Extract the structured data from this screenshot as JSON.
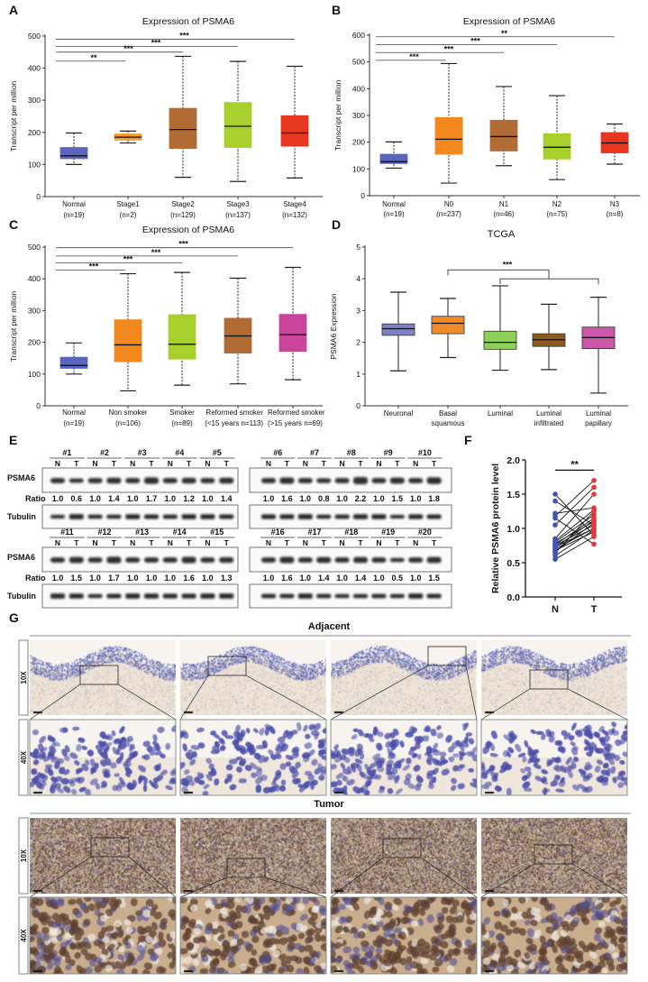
{
  "panel_labels": {
    "A": "A",
    "B": "B",
    "C": "C",
    "D": "D",
    "E": "E",
    "F": "F",
    "G": "G"
  },
  "chart_data": [
    {
      "id": "A",
      "type": "box",
      "title": "Expression of PSMA6",
      "ylabel": "Transcript per million",
      "ylim": [
        0,
        500
      ],
      "yticks": [
        0,
        100,
        200,
        300,
        400,
        500
      ],
      "whisker_style": "dashed",
      "categories": [
        "Normal",
        "Stage1",
        "Stage2",
        "Stage3",
        "Stage4"
      ],
      "sublabels": [
        "(n=19)",
        "(n=2)",
        "(n=129)",
        "(n=137)",
        "(n=132)"
      ],
      "colors": [
        "#5866be",
        "#f39a2b",
        "#b06c34",
        "#a8d02c",
        "#e8361f"
      ],
      "boxes": [
        {
          "min": 100,
          "q1": 118,
          "median": 127,
          "q3": 153,
          "max": 198
        },
        {
          "min": 167,
          "q1": 176,
          "median": 185,
          "q3": 195,
          "max": 204
        },
        {
          "min": 60,
          "q1": 150,
          "median": 209,
          "q3": 275,
          "max": 437
        },
        {
          "min": 47,
          "q1": 153,
          "median": 219,
          "q3": 293,
          "max": 421
        },
        {
          "min": 58,
          "q1": 157,
          "median": 198,
          "q3": 252,
          "max": 406
        }
      ],
      "significance": [
        {
          "from": 0,
          "to": 1,
          "y": 422,
          "label": "**"
        },
        {
          "from": 0,
          "to": 2,
          "y": 450,
          "label": "***"
        },
        {
          "from": 0,
          "to": 3,
          "y": 468,
          "label": "***"
        },
        {
          "from": 0,
          "to": 4,
          "y": 490,
          "label": "***"
        }
      ]
    },
    {
      "id": "B",
      "type": "box",
      "title": "Expression of PSMA6",
      "ylabel": "Transcript per million",
      "ylim": [
        0,
        600
      ],
      "yticks": [
        0,
        100,
        200,
        300,
        400,
        500,
        600
      ],
      "whisker_style": "dashed",
      "categories": [
        "Normal",
        "N0",
        "N1",
        "N2",
        "N3"
      ],
      "sublabels": [
        "(n=19)",
        "(n=237)",
        "(n=46)",
        "(n=75)",
        "(n=8)"
      ],
      "colors": [
        "#5866be",
        "#f3881f",
        "#b06c34",
        "#a8d02c",
        "#e8361f"
      ],
      "boxes": [
        {
          "min": 103,
          "q1": 120,
          "median": 127,
          "q3": 155,
          "max": 201
        },
        {
          "min": 47,
          "q1": 155,
          "median": 211,
          "q3": 292,
          "max": 494
        },
        {
          "min": 112,
          "q1": 167,
          "median": 221,
          "q3": 282,
          "max": 408
        },
        {
          "min": 60,
          "q1": 137,
          "median": 181,
          "q3": 232,
          "max": 374
        },
        {
          "min": 118,
          "q1": 160,
          "median": 197,
          "q3": 236,
          "max": 268
        }
      ],
      "significance": [
        {
          "from": 0,
          "to": 1,
          "y": 506,
          "label": "***"
        },
        {
          "from": 0,
          "to": 2,
          "y": 535,
          "label": "***"
        },
        {
          "from": 0,
          "to": 3,
          "y": 565,
          "label": "***"
        },
        {
          "from": 0,
          "to": 4,
          "y": 594,
          "label": "**"
        }
      ]
    },
    {
      "id": "C",
      "type": "box",
      "title": "Expression of PSMA6",
      "ylabel": "Transcript per million",
      "ylim": [
        0,
        500
      ],
      "yticks": [
        0,
        100,
        200,
        300,
        400,
        500
      ],
      "whisker_style": "dashed",
      "categories": [
        "Normal",
        "Non smoker",
        "Smoker",
        "Reformed smoker",
        "Reformed smoker"
      ],
      "sublabels": [
        "(n=19)",
        "(n=106)",
        "(n=89)",
        "(<15 years n=113)",
        "(>15 years n=69)"
      ],
      "colors": [
        "#5866be",
        "#f3881f",
        "#a8d02c",
        "#b06c34",
        "#c8459b"
      ],
      "boxes": [
        {
          "min": 100,
          "q1": 118,
          "median": 127,
          "q3": 153,
          "max": 198
        },
        {
          "min": 47,
          "q1": 139,
          "median": 192,
          "q3": 271,
          "max": 416
        },
        {
          "min": 65,
          "q1": 147,
          "median": 194,
          "q3": 287,
          "max": 420
        },
        {
          "min": 69,
          "q1": 166,
          "median": 220,
          "q3": 276,
          "max": 402
        },
        {
          "min": 82,
          "q1": 171,
          "median": 224,
          "q3": 288,
          "max": 436
        }
      ],
      "significance": [
        {
          "from": 0,
          "to": 1,
          "y": 428,
          "label": "***"
        },
        {
          "from": 0,
          "to": 2,
          "y": 450,
          "label": "***"
        },
        {
          "from": 0,
          "to": 3,
          "y": 472,
          "label": "***"
        },
        {
          "from": 0,
          "to": 4,
          "y": 498,
          "label": "***"
        }
      ]
    },
    {
      "id": "D",
      "type": "box",
      "title": "TCGA",
      "ylabel": "PSMA6 Expression",
      "ylim": [
        0,
        5
      ],
      "yticks": [
        0,
        1,
        2,
        3,
        4,
        5
      ],
      "whisker_style": "solid",
      "categories": [
        "Neuronal",
        "Basal",
        "Luminal",
        "Luminal",
        "Luminal"
      ],
      "sublabels": [
        "",
        "squamous",
        "",
        "infiltrated",
        "papillary"
      ],
      "colors": [
        "#7d82c6",
        "#f38a2a",
        "#8fd05b",
        "#8b5b1f",
        "#cc56a9"
      ],
      "boxes": [
        {
          "min": 1.1,
          "q1": 2.22,
          "median": 2.43,
          "q3": 2.58,
          "max": 3.58
        },
        {
          "min": 1.52,
          "q1": 2.27,
          "median": 2.6,
          "q3": 2.82,
          "max": 3.38
        },
        {
          "min": 1.12,
          "q1": 1.78,
          "median": 2.0,
          "q3": 2.35,
          "max": 3.78
        },
        {
          "min": 1.14,
          "q1": 1.87,
          "median": 2.08,
          "q3": 2.27,
          "max": 3.2
        },
        {
          "min": 0.4,
          "q1": 1.8,
          "median": 2.15,
          "q3": 2.48,
          "max": 3.42
        }
      ],
      "bracket": {
        "left": 1,
        "right_from": 2,
        "right_to": 4,
        "y_top": 4.28,
        "y_low": 4.0,
        "label": "***"
      }
    },
    {
      "id": "F",
      "type": "paired_scatter",
      "ylabel": "Relative PSMA6 protein level",
      "ylim": [
        0,
        2.0
      ],
      "yticks": [
        "0.0",
        "0.5",
        "1.0",
        "1.5",
        "2.0"
      ],
      "categories": [
        "N",
        "T"
      ],
      "colors": [
        "#3f54b3",
        "#e5373c"
      ],
      "N": [
        1.5,
        1.4,
        1.22,
        1.18,
        1.15,
        1.05,
        0.85,
        0.82,
        0.8,
        0.78,
        0.76,
        0.75,
        0.73,
        0.72,
        0.7,
        0.68,
        0.66,
        0.64,
        0.6,
        0.55
      ],
      "T": [
        0.9,
        1.05,
        1.3,
        1.7,
        0.77,
        1.6,
        1.5,
        1.27,
        1.2,
        1.1,
        1.15,
        1.05,
        1.0,
        1.12,
        1.0,
        0.95,
        1.08,
        1.25,
        0.98,
        0.88
      ],
      "significance": {
        "label": "**",
        "y": 1.85
      }
    }
  ],
  "western_blot": {
    "row_labels": {
      "target": "PSMA6",
      "ratio": "Ratio",
      "control": "Tubulin"
    },
    "lane_labels": [
      "N",
      "T"
    ],
    "blocks": [
      {
        "samples": [
          "#1",
          "#2",
          "#3",
          "#4",
          "#5"
        ],
        "ratios": [
          "1.0",
          "0.6",
          "1.0",
          "1.4",
          "1.0",
          "1.7",
          "1.0",
          "1.2",
          "1.0",
          "1.4"
        ]
      },
      {
        "samples": [
          "#6",
          "#7",
          "#8",
          "#9",
          "#10"
        ],
        "ratios": [
          "1.0",
          "1.6",
          "1.0",
          "0.8",
          "1.0",
          "2.2",
          "1.0",
          "1.5",
          "1.0",
          "1.8"
        ]
      },
      {
        "samples": [
          "#11",
          "#12",
          "#13",
          "#14",
          "#15"
        ],
        "ratios": [
          "1.0",
          "1.5",
          "1.0",
          "1.7",
          "1.0",
          "1.0",
          "1.0",
          "1.6",
          "1.0",
          "1.3"
        ]
      },
      {
        "samples": [
          "#16",
          "#17",
          "#18",
          "#19",
          "#20"
        ],
        "ratios": [
          "1.0",
          "1.6",
          "1.0",
          "1.4",
          "1.0",
          "1.4",
          "1.0",
          "0.5",
          "1.0",
          "1.5"
        ]
      }
    ]
  },
  "ihc": {
    "sections": [
      "Adjacent",
      "Tumor"
    ],
    "magnifications": [
      "10X",
      "40X"
    ],
    "columns": 4
  }
}
